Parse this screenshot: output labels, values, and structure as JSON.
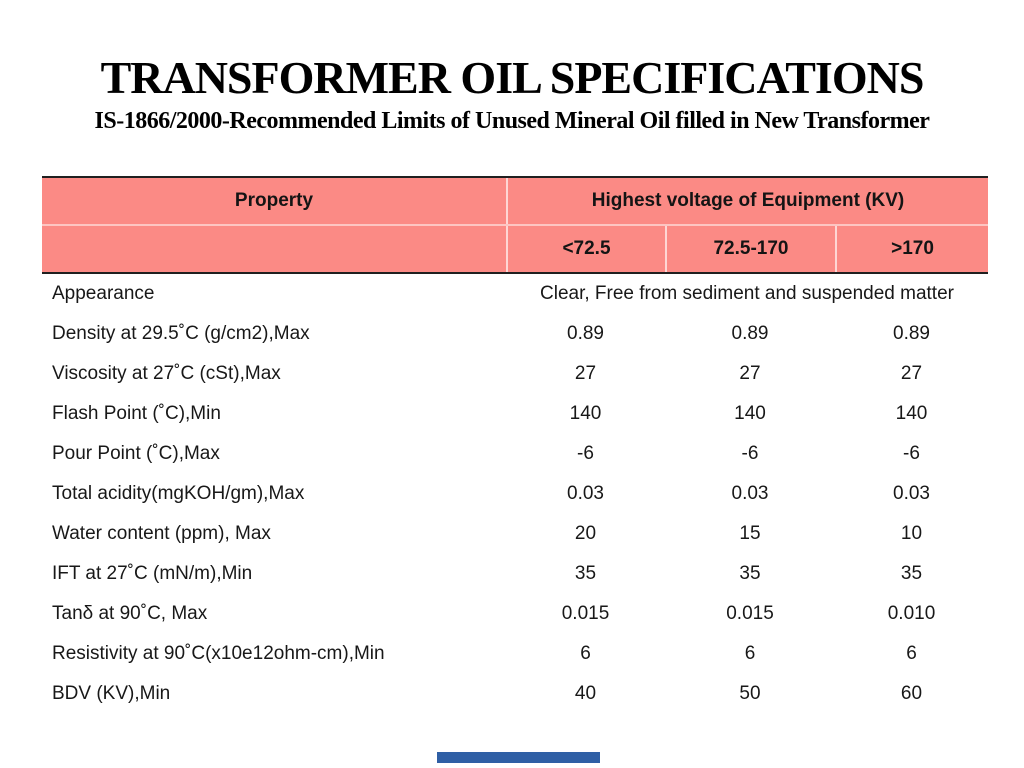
{
  "title": "TRANSFORMER OIL SPECIFICATIONS",
  "subtitle": "IS-1866/2000-Recommended Limits of Unused Mineral Oil filled in New Transformer",
  "table": {
    "header": {
      "property_label": "Property",
      "group_label": "Highest voltage of Equipment (KV)",
      "columns": [
        "<72.5",
        "72.5-170",
        ">170"
      ]
    },
    "rows": [
      {
        "property": "Appearance",
        "span_value": "Clear, Free from sediment and suspended matter"
      },
      {
        "property": "Density at 29.5˚C (g/cm2),Max",
        "values": [
          "0.89",
          "0.89",
          "0.89"
        ]
      },
      {
        "property": "Viscosity at 27˚C (cSt),Max",
        "values": [
          "27",
          "27",
          "27"
        ]
      },
      {
        "property": "Flash Point (˚C),Min",
        "values": [
          "140",
          "140",
          "140"
        ]
      },
      {
        "property": "Pour Point (˚C),Max",
        "values": [
          "-6",
          "-6",
          "-6"
        ]
      },
      {
        "property": "Total acidity(mgKOH/gm),Max",
        "values": [
          "0.03",
          "0.03",
          "0.03"
        ]
      },
      {
        "property": "Water content (ppm), Max",
        "values": [
          "20",
          "15",
          "10"
        ]
      },
      {
        "property": "IFT at 27˚C (mN/m),Min",
        "values": [
          "35",
          "35",
          "35"
        ]
      },
      {
        "property": "Tanδ at 90˚C, Max",
        "values": [
          "0.015",
          "0.015",
          "0.010"
        ]
      },
      {
        "property": "Resistivity at 90˚C(x10e12ohm-cm),Min",
        "values": [
          "6",
          "6",
          "6"
        ]
      },
      {
        "property": "BDV (KV),Min",
        "values": [
          "40",
          "50",
          "60"
        ]
      }
    ]
  },
  "colors": {
    "header_bg": "#FB8A85",
    "table_border": "#1F1F1F",
    "footer_bar": "#2F5FA5"
  }
}
